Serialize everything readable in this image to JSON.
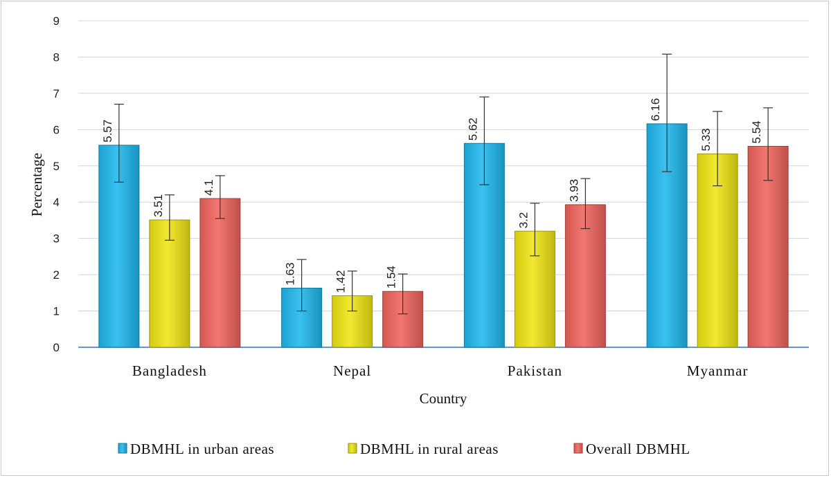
{
  "chart_data": {
    "type": "bar",
    "xlabel": "Country",
    "ylabel": "Percentage",
    "ylim": [
      0,
      9
    ],
    "yticks": [
      0,
      1,
      2,
      3,
      4,
      5,
      6,
      7,
      8,
      9
    ],
    "grid": true,
    "legend_position": "bottom",
    "categories": [
      "Bangladesh",
      "Nepal",
      "Pakistan",
      "Myanmar"
    ],
    "series": [
      {
        "name": "DBMHL in urban areas",
        "color": "#1fb8ee",
        "values": [
          5.57,
          1.63,
          5.62,
          6.16
        ],
        "labels": [
          "5.57",
          "1.63",
          "5.62",
          "6.16"
        ],
        "error_low": [
          4.55,
          1.0,
          4.48,
          4.84
        ],
        "error_high": [
          6.7,
          2.42,
          6.9,
          8.08
        ]
      },
      {
        "name": "DBMHL in rural areas",
        "color": "#f0e514",
        "values": [
          3.51,
          1.42,
          3.2,
          5.33
        ],
        "labels": [
          "3.51",
          "1.42",
          "3.2",
          "5.33"
        ],
        "error_low": [
          2.95,
          1.0,
          2.52,
          4.45
        ],
        "error_high": [
          4.2,
          2.1,
          3.97,
          6.5
        ]
      },
      {
        "name": "Overall DBMHL",
        "color": "#f0645c",
        "values": [
          4.1,
          1.54,
          3.93,
          5.54
        ],
        "labels": [
          "4.1",
          "1.54",
          "3.93",
          "5.54"
        ],
        "error_low": [
          3.55,
          0.92,
          3.27,
          4.6
        ],
        "error_high": [
          4.73,
          2.02,
          4.65,
          6.6
        ]
      }
    ]
  }
}
